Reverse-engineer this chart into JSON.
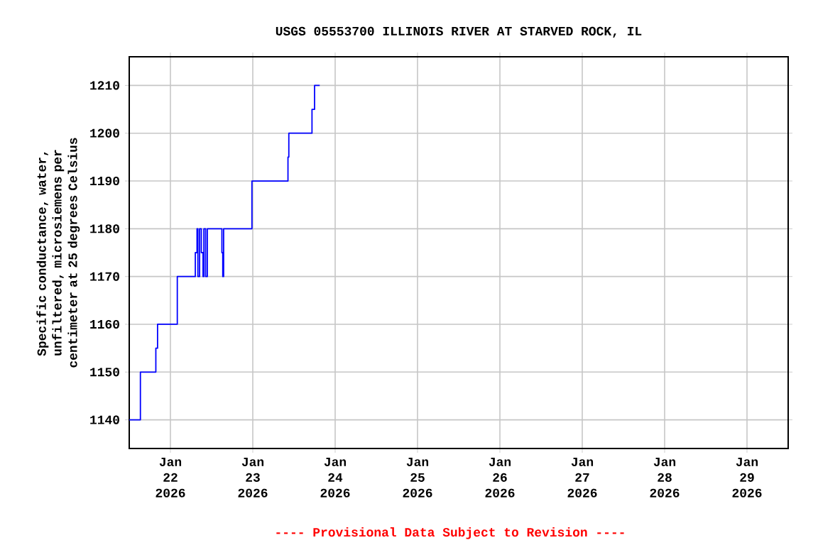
{
  "chart_data": {
    "type": "step",
    "title": "USGS 05553700 ILLINOIS RIVER AT STARVED ROCK, IL",
    "ylabel": "Specific conductance, water, unfiltered, microsiemens per centimeter at 25 degrees Celsius",
    "annotations": [
      "---- Provisional Data Subject to Revision ----"
    ],
    "x": [
      "2026-01-21T12:00",
      "2026-01-21T15:15",
      "2026-01-21T19:45",
      "2026-01-21T20:15",
      "2026-01-22T02:00",
      "2026-01-22T07:15",
      "2026-01-22T07:45",
      "2026-01-22T08:00",
      "2026-01-22T08:30",
      "2026-01-22T09:00",
      "2026-01-22T09:30",
      "2026-01-22T09:45",
      "2026-01-22T10:15",
      "2026-01-22T10:45",
      "2026-01-22T15:00",
      "2026-01-22T15:15",
      "2026-01-22T15:30",
      "2026-01-22T23:45",
      "2026-01-23T10:15",
      "2026-01-23T10:30",
      "2026-01-23T17:15",
      "2026-01-23T18:00",
      "2026-01-23T19:30"
    ],
    "series": [
      {
        "color": "#0000ff",
        "values": [
          1140,
          1150,
          1155,
          1160,
          1170,
          1175,
          1180,
          1170,
          1180,
          1175,
          1170,
          1180,
          1170,
          1180,
          1175,
          1170,
          1180,
          1190,
          1195,
          1200,
          1205,
          1210,
          1210
        ]
      }
    ],
    "xlim": [
      "2026-01-21T12:00",
      "2026-01-29T12:00"
    ],
    "xticks": [
      {
        "value": "2026-01-22",
        "label": "Jan 22 2026"
      },
      {
        "value": "2026-01-23",
        "label": "Jan 23 2026"
      },
      {
        "value": "2026-01-24",
        "label": "Jan 24 2026"
      },
      {
        "value": "2026-01-25",
        "label": "Jan 25 2026"
      },
      {
        "value": "2026-01-26",
        "label": "Jan 26 2026"
      },
      {
        "value": "2026-01-27",
        "label": "Jan 27 2026"
      },
      {
        "value": "2026-01-28",
        "label": "Jan 28 2026"
      },
      {
        "value": "2026-01-29",
        "label": "Jan 29 2026"
      }
    ],
    "ylim": [
      1134,
      1216
    ],
    "yticks": [
      1140,
      1150,
      1160,
      1170,
      1180,
      1190,
      1200,
      1210
    ],
    "grid": true
  }
}
